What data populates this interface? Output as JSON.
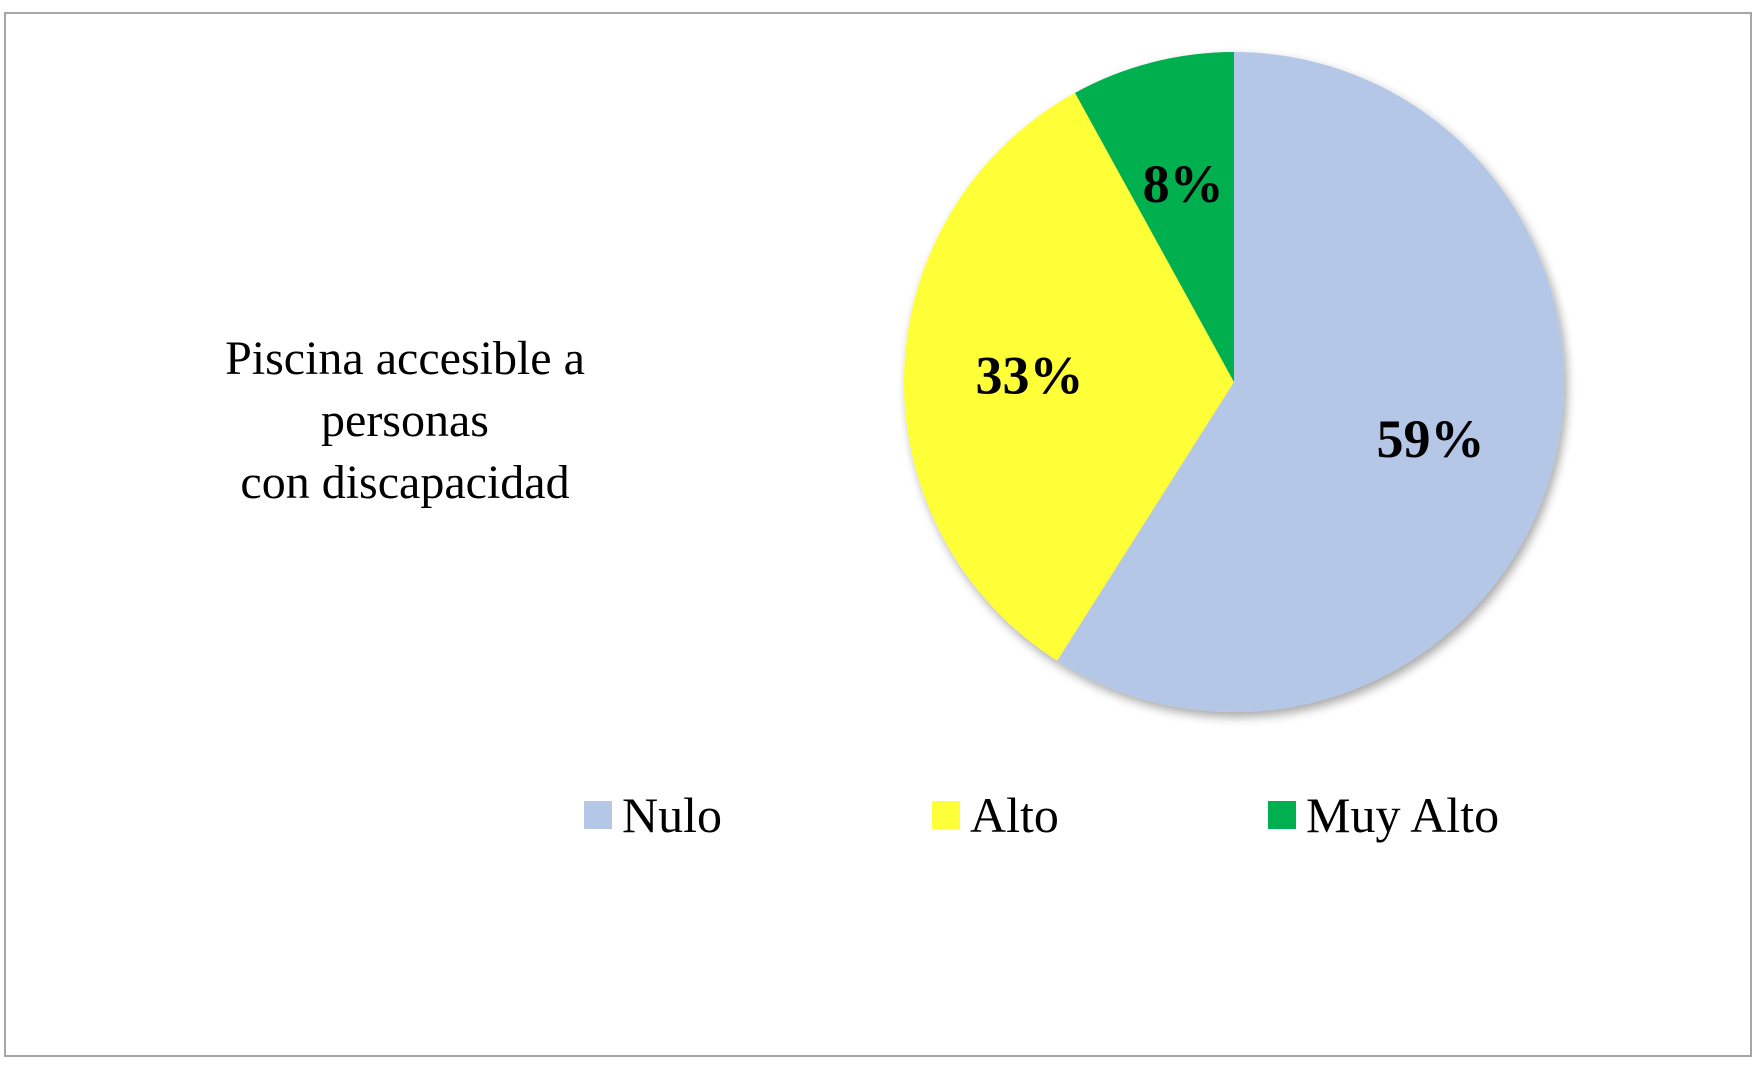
{
  "chart_data": {
    "type": "pie",
    "title_lines": [
      "Piscina accesible a",
      "personas",
      "con discapacidad"
    ],
    "categories": [
      "Nulo",
      "Alto",
      "Muy Alto"
    ],
    "values": [
      59,
      33,
      8
    ],
    "data_labels": [
      "59%",
      "33%",
      "8%"
    ],
    "colors": [
      "#b4c7e7",
      "#ffff38",
      "#00b050"
    ],
    "start_angle_deg": 0,
    "direction": "clockwise",
    "legend_position": "bottom"
  }
}
